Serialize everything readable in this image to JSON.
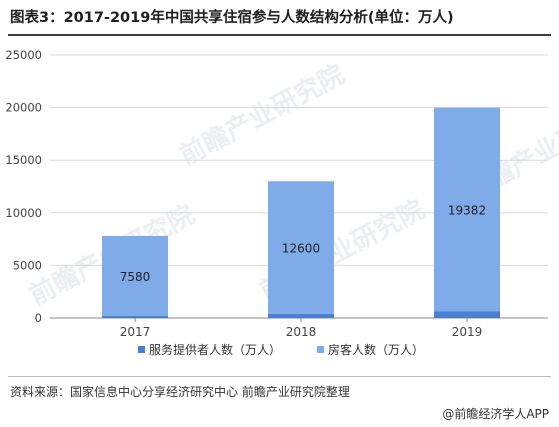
{
  "title": "图表3：2017-2019年中国共享住宿参与人数结构分析(单位：万人)",
  "source": "资料来源：国家信息中心分享经济研究中心 前瞻产业研究院整理",
  "brand": "@前瞻经济学人APP",
  "watermark": "前瞻产业研究院",
  "colors": {
    "provider": "#4a7fd4",
    "guest": "#7fabe8",
    "grid": "#d9d9d9",
    "axis": "#888888"
  },
  "chart_data": {
    "type": "bar",
    "stacked": true,
    "categories": [
      "2017",
      "2018",
      "2019"
    ],
    "series": [
      {
        "name": "服务提供者人数（万人）",
        "values": [
          220,
          400,
          618
        ]
      },
      {
        "name": "房客人数（万人）",
        "values": [
          7580,
          12600,
          19382
        ]
      }
    ],
    "ylim": [
      0,
      25000
    ],
    "yticks": [
      "0",
      "5000",
      "10000",
      "15000",
      "20000",
      "25000"
    ],
    "grid": true,
    "legend": "bottom"
  }
}
